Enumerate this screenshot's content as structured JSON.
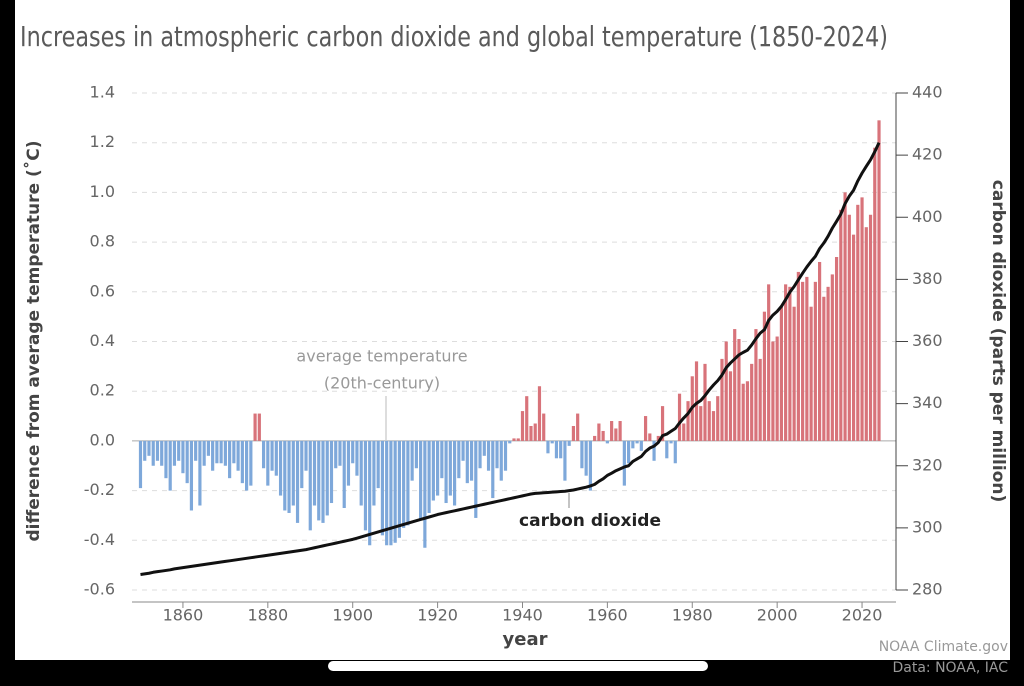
{
  "chart_data": {
    "type": "bar",
    "title": "Increases in atmospheric carbon dioxide and global temperature (1850-2024)",
    "x_label": "year",
    "y_label": "difference from  average temperature (˚C)",
    "y2_label": "carbon dioxide (parts per million)",
    "annotations": [
      "average temperature",
      "(20th-century)"
    ],
    "source": [
      "NOAA Climate.gov",
      "Data: NOAA, IAC"
    ],
    "xlim": [
      1848,
      2028
    ],
    "xticks": [
      1860,
      1880,
      1900,
      1920,
      1940,
      1960,
      1980,
      2000,
      2020
    ],
    "ylim": [
      -0.6,
      1.4
    ],
    "yticks": [
      -0.6,
      -0.4,
      -0.2,
      0.0,
      0.2,
      0.4,
      0.6,
      0.8,
      1.0,
      1.2,
      1.4
    ],
    "y2lim": [
      280,
      440
    ],
    "y2ticks": [
      280,
      300,
      320,
      340,
      360,
      380,
      400,
      420,
      440
    ],
    "grid": true,
    "x": [
      1850,
      1851,
      1852,
      1853,
      1854,
      1855,
      1856,
      1857,
      1858,
      1859,
      1860,
      1861,
      1862,
      1863,
      1864,
      1865,
      1866,
      1867,
      1868,
      1869,
      1870,
      1871,
      1872,
      1873,
      1874,
      1875,
      1876,
      1877,
      1878,
      1879,
      1880,
      1881,
      1882,
      1883,
      1884,
      1885,
      1886,
      1887,
      1888,
      1889,
      1890,
      1891,
      1892,
      1893,
      1894,
      1895,
      1896,
      1897,
      1898,
      1899,
      1900,
      1901,
      1902,
      1903,
      1904,
      1905,
      1906,
      1907,
      1908,
      1909,
      1910,
      1911,
      1912,
      1913,
      1914,
      1915,
      1916,
      1917,
      1918,
      1919,
      1920,
      1921,
      1922,
      1923,
      1924,
      1925,
      1926,
      1927,
      1928,
      1929,
      1930,
      1931,
      1932,
      1933,
      1934,
      1935,
      1936,
      1937,
      1938,
      1939,
      1940,
      1941,
      1942,
      1943,
      1944,
      1945,
      1946,
      1947,
      1948,
      1949,
      1950,
      1951,
      1952,
      1953,
      1954,
      1955,
      1956,
      1957,
      1958,
      1959,
      1960,
      1961,
      1962,
      1963,
      1964,
      1965,
      1966,
      1967,
      1968,
      1969,
      1970,
      1971,
      1972,
      1973,
      1974,
      1975,
      1976,
      1977,
      1978,
      1979,
      1980,
      1981,
      1982,
      1983,
      1984,
      1985,
      1986,
      1987,
      1988,
      1989,
      1990,
      1991,
      1992,
      1993,
      1994,
      1995,
      1996,
      1997,
      1998,
      1999,
      2000,
      2001,
      2002,
      2003,
      2004,
      2005,
      2006,
      2007,
      2008,
      2009,
      2010,
      2011,
      2012,
      2013,
      2014,
      2015,
      2016,
      2017,
      2018,
      2019,
      2020,
      2021,
      2022,
      2023,
      2024
    ],
    "series": [
      {
        "type": "bar",
        "color": "#d8737a",
        "negative_color": "#7ea8da",
        "values": [
          -0.19,
          -0.08,
          -0.06,
          -0.1,
          -0.08,
          -0.1,
          -0.15,
          -0.2,
          -0.1,
          -0.08,
          -0.13,
          -0.17,
          -0.28,
          -0.08,
          -0.26,
          -0.1,
          -0.06,
          -0.12,
          -0.09,
          -0.09,
          -0.1,
          -0.15,
          -0.09,
          -0.12,
          -0.17,
          -0.2,
          -0.18,
          0.11,
          0.11,
          -0.11,
          -0.18,
          -0.12,
          -0.14,
          -0.22,
          -0.28,
          -0.29,
          -0.26,
          -0.33,
          -0.19,
          -0.12,
          -0.36,
          -0.26,
          -0.32,
          -0.33,
          -0.3,
          -0.25,
          -0.11,
          -0.1,
          -0.27,
          -0.18,
          -0.09,
          -0.14,
          -0.26,
          -0.36,
          -0.42,
          -0.26,
          -0.19,
          -0.38,
          -0.42,
          -0.42,
          -0.41,
          -0.39,
          -0.35,
          -0.34,
          -0.16,
          -0.11,
          -0.32,
          -0.43,
          -0.29,
          -0.24,
          -0.22,
          -0.15,
          -0.25,
          -0.22,
          -0.26,
          -0.15,
          -0.08,
          -0.17,
          -0.16,
          -0.31,
          -0.11,
          -0.06,
          -0.12,
          -0.23,
          -0.11,
          -0.16,
          -0.12,
          -0.01,
          0.01,
          0.01,
          0.12,
          0.18,
          0.06,
          0.07,
          0.22,
          0.11,
          -0.05,
          -0.01,
          -0.07,
          -0.07,
          -0.16,
          -0.02,
          0.06,
          0.11,
          -0.11,
          -0.14,
          -0.2,
          0.02,
          0.07,
          0.04,
          -0.01,
          0.08,
          0.05,
          0.08,
          -0.18,
          -0.09,
          -0.03,
          -0.01,
          -0.04,
          0.1,
          0.03,
          -0.08,
          0.02,
          0.14,
          -0.07,
          -0.01,
          -0.09,
          0.19,
          0.07,
          0.16,
          0.26,
          0.32,
          0.14,
          0.31,
          0.16,
          0.12,
          0.18,
          0.33,
          0.4,
          0.28,
          0.45,
          0.41,
          0.23,
          0.24,
          0.31,
          0.45,
          0.33,
          0.52,
          0.63,
          0.4,
          0.42,
          0.54,
          0.63,
          0.62,
          0.54,
          0.68,
          0.64,
          0.66,
          0.54,
          0.64,
          0.72,
          0.58,
          0.62,
          0.67,
          0.74,
          0.93,
          1.0,
          0.91,
          0.83,
          0.95,
          0.98,
          0.86,
          0.91,
          1.18,
          1.29
        ]
      },
      {
        "type": "line",
        "name": "carbon dioxide",
        "axis": "y2",
        "color": "#111111",
        "values": [
          285.0,
          285.2,
          285.4,
          285.7,
          285.9,
          286.1,
          286.3,
          286.5,
          286.8,
          287.0,
          287.2,
          287.4,
          287.6,
          287.8,
          288.0,
          288.2,
          288.4,
          288.6,
          288.8,
          289.0,
          289.2,
          289.4,
          289.6,
          289.8,
          290.0,
          290.2,
          290.4,
          290.6,
          290.8,
          291.0,
          291.2,
          291.4,
          291.6,
          291.8,
          292.0,
          292.2,
          292.4,
          292.6,
          292.8,
          293.0,
          293.3,
          293.6,
          293.9,
          294.2,
          294.5,
          294.8,
          295.1,
          295.4,
          295.7,
          296.0,
          296.3,
          296.7,
          297.1,
          297.5,
          297.9,
          298.3,
          298.7,
          299.1,
          299.5,
          299.9,
          300.3,
          300.7,
          301.1,
          301.5,
          301.9,
          302.3,
          302.7,
          303.1,
          303.5,
          303.9,
          304.3,
          304.6,
          304.9,
          305.2,
          305.5,
          305.8,
          306.1,
          306.4,
          306.7,
          307.0,
          307.3,
          307.6,
          307.9,
          308.2,
          308.5,
          308.8,
          309.1,
          309.4,
          309.7,
          310.0,
          310.3,
          310.6,
          310.9,
          311.1,
          311.2,
          311.3,
          311.4,
          311.5,
          311.6,
          311.7,
          311.8,
          312.0,
          312.2,
          312.5,
          312.8,
          313.1,
          313.5,
          314.0,
          315.0,
          315.8,
          316.9,
          317.6,
          318.4,
          319.0,
          319.6,
          320.0,
          321.4,
          322.2,
          323.0,
          324.6,
          325.7,
          326.3,
          327.5,
          329.7,
          330.2,
          331.1,
          332.0,
          333.8,
          335.4,
          336.8,
          338.8,
          340.1,
          341.0,
          342.6,
          344.4,
          346.0,
          347.4,
          349.2,
          351.6,
          353.1,
          354.4,
          355.7,
          356.5,
          357.2,
          358.9,
          360.9,
          362.7,
          363.8,
          366.8,
          368.5,
          369.7,
          371.3,
          373.5,
          375.9,
          377.7,
          379.9,
          382.0,
          384.0,
          385.8,
          387.4,
          389.9,
          391.7,
          393.9,
          396.5,
          398.7,
          401.0,
          404.4,
          406.8,
          408.7,
          411.7,
          414.2,
          416.4,
          418.5,
          421.1,
          424.0
        ]
      }
    ]
  }
}
